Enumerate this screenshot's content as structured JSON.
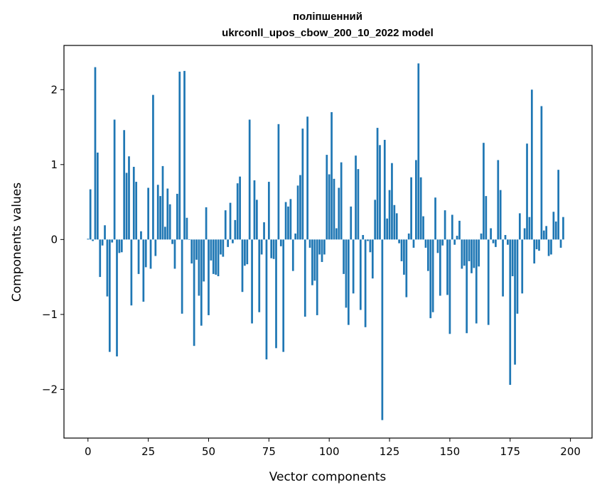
{
  "chart_data": {
    "type": "bar",
    "title": [
      "поліпшенний",
      "ukrconll_upos_cbow_200_10_2022 model"
    ],
    "xlabel": "Vector components",
    "ylabel": "Components values",
    "xlim": [
      -9.95,
      208.95
    ],
    "ylim": [
      -2.65,
      2.59
    ],
    "xticks": [
      0,
      25,
      50,
      75,
      100,
      125,
      150,
      175,
      200
    ],
    "yticks": [
      -2,
      -1,
      0,
      1,
      2
    ],
    "xtick_labels": [
      "0",
      "25",
      "50",
      "75",
      "100",
      "125",
      "150",
      "175",
      "200"
    ],
    "ytick_labels": [
      "−2",
      "−1",
      "0",
      "1",
      "2"
    ],
    "grid": false,
    "bar_color": "#1f77b4",
    "values": [
      0.01,
      0.67,
      -0.02,
      2.3,
      1.16,
      -0.5,
      -0.08,
      0.19,
      -0.76,
      -1.5,
      -0.04,
      1.6,
      -1.56,
      -0.18,
      -0.17,
      1.46,
      0.89,
      1.11,
      -0.88,
      0.97,
      0.77,
      -0.46,
      0.11,
      -0.83,
      -0.37,
      0.69,
      -0.39,
      1.93,
      -0.22,
      0.73,
      0.58,
      0.98,
      0.17,
      0.68,
      0.47,
      -0.06,
      -0.39,
      0.61,
      2.24,
      -0.99,
      2.25,
      0.29,
      0.0,
      -0.32,
      -1.42,
      -0.27,
      -0.75,
      -1.15,
      -0.56,
      0.43,
      -1.01,
      -0.28,
      -0.46,
      -0.47,
      -0.49,
      -0.2,
      -0.23,
      0.39,
      -0.1,
      0.49,
      -0.05,
      0.26,
      0.75,
      0.84,
      -0.7,
      -0.35,
      -0.33,
      1.6,
      -1.12,
      0.79,
      0.53,
      -0.97,
      -0.2,
      0.23,
      -1.6,
      0.77,
      -0.25,
      -0.26,
      -1.45,
      1.54,
      -0.09,
      -1.5,
      0.5,
      0.44,
      0.54,
      -0.42,
      0.08,
      0.72,
      0.86,
      1.48,
      -1.03,
      1.64,
      -0.11,
      -0.61,
      -0.55,
      -1.01,
      -0.2,
      -0.3,
      -0.2,
      1.13,
      0.87,
      1.7,
      0.81,
      0.15,
      0.69,
      1.03,
      -0.46,
      -0.91,
      -1.14,
      0.44,
      -0.72,
      1.12,
      0.94,
      -0.94,
      0.06,
      -1.17,
      -0.02,
      -0.17,
      -0.52,
      0.53,
      1.49,
      1.26,
      -2.41,
      1.33,
      0.28,
      0.66,
      1.02,
      0.46,
      0.35,
      -0.05,
      -0.29,
      -0.47,
      -0.77,
      0.08,
      0.83,
      -0.11,
      1.06,
      2.35,
      0.83,
      0.31,
      -0.11,
      -0.42,
      -1.05,
      -0.97,
      0.56,
      -0.18,
      -0.75,
      -0.08,
      0.39,
      -0.74,
      -1.26,
      0.33,
      -0.07,
      0.05,
      0.25,
      -0.39,
      -0.35,
      -1.25,
      -0.29,
      -0.45,
      -0.38,
      -1.12,
      -0.36,
      0.08,
      1.29,
      0.58,
      -1.14,
      0.15,
      -0.05,
      -0.1,
      1.06,
      0.66,
      -0.76,
      0.06,
      -0.07,
      -1.94,
      -0.49,
      -1.67,
      -0.99,
      0.35,
      -0.72,
      0.15,
      1.28,
      0.3,
      2.0,
      -0.32,
      -0.13,
      -0.15,
      1.78,
      0.12,
      0.18,
      -0.22,
      -0.2,
      0.37,
      0.24,
      0.93,
      -0.11,
      0.3
    ]
  }
}
